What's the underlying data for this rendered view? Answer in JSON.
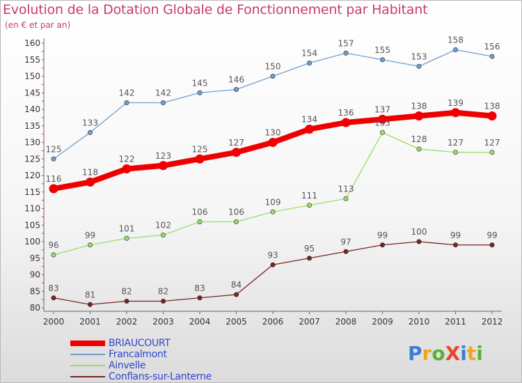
{
  "header": {
    "title": "Evolution de la Dotation Globale de Fonctionnement par Habitant",
    "subtitle": "(en € et par an)"
  },
  "logo": {
    "text": "ProXiti",
    "colors": [
      "#3a7fd5",
      "#f2a51a",
      "#59b233",
      "#e8452c",
      "#3a7fd5",
      "#f2a51a",
      "#59b233"
    ]
  },
  "chart_data": {
    "type": "line",
    "title": "Evolution de la Dotation Globale de Fonctionnement par Habitant",
    "subtitle": "(en € et par an)",
    "x": [
      "2000",
      "2001",
      "2002",
      "2003",
      "2004",
      "2005",
      "2006",
      "2007",
      "2008",
      "2009",
      "2010",
      "2011",
      "2012"
    ],
    "yticks": [
      80,
      85,
      90,
      95,
      100,
      105,
      110,
      115,
      120,
      125,
      130,
      135,
      140,
      145,
      150,
      155,
      160
    ],
    "ylim": [
      80,
      160
    ],
    "grid": false,
    "legend_position": "bottom-left",
    "series": [
      {
        "name": "BRIAUCOURT",
        "color": "#ee0000",
        "bold": true,
        "values": [
          116,
          118,
          122,
          123,
          125,
          127,
          130,
          134,
          136,
          137,
          138,
          139,
          138
        ]
      },
      {
        "name": "Francalmont",
        "color": "#6f9fd0",
        "bold": false,
        "values": [
          125,
          133,
          142,
          142,
          145,
          146,
          150,
          154,
          157,
          155,
          153,
          158,
          156
        ]
      },
      {
        "name": "Ainvelle",
        "color": "#99dd66",
        "bold": false,
        "values": [
          96,
          99,
          101,
          102,
          106,
          106,
          109,
          111,
          113,
          133,
          128,
          127,
          127
        ]
      },
      {
        "name": "Conflans-sur-Lanterne",
        "color": "#7a2222",
        "bold": false,
        "values": [
          83,
          81,
          82,
          82,
          83,
          84,
          93,
          95,
          97,
          99,
          100,
          99,
          99
        ]
      }
    ]
  }
}
